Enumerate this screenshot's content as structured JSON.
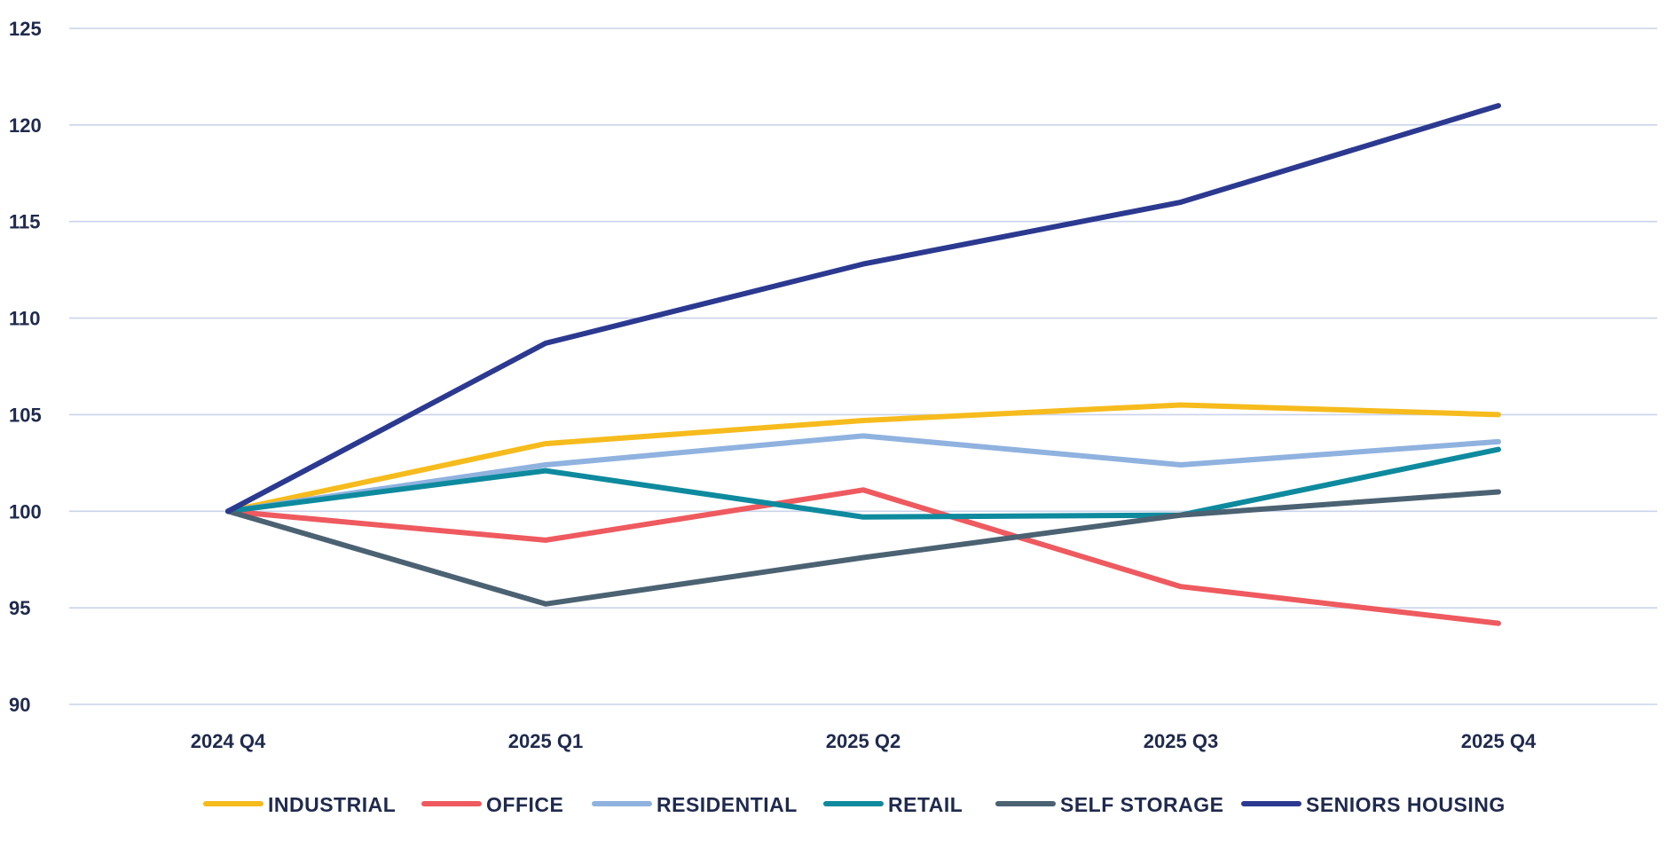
{
  "chart_data": {
    "type": "line",
    "title": "",
    "xlabel": "",
    "ylabel": "",
    "categories": [
      "2024 Q4",
      "2025 Q1",
      "2025 Q2",
      "2025 Q3",
      "2025 Q4"
    ],
    "ylim": [
      90,
      125
    ],
    "yticks": [
      90,
      95,
      100,
      105,
      110,
      115,
      120,
      125
    ],
    "grid": true,
    "legend_position": "bottom",
    "series": [
      {
        "name": "INDUSTRIAL",
        "color": "#f6bb1c",
        "values": [
          100,
          103.5,
          104.7,
          105.5,
          105.0
        ]
      },
      {
        "name": "OFFICE",
        "color": "#ee5a5f",
        "values": [
          100,
          98.5,
          101.1,
          96.1,
          94.2
        ]
      },
      {
        "name": "RESIDENTIAL",
        "color": "#8fb2df",
        "values": [
          100,
          102.4,
          103.9,
          102.4,
          103.6
        ]
      },
      {
        "name": "RETAIL",
        "color": "#0e8a9e",
        "values": [
          100,
          102.1,
          99.7,
          99.8,
          103.2
        ]
      },
      {
        "name": "SELF STORAGE",
        "color": "#4b6272",
        "values": [
          100,
          95.2,
          97.6,
          99.8,
          101.0
        ]
      },
      {
        "name": "SENIORS HOUSING",
        "color": "#2b3990",
        "values": [
          100,
          108.7,
          112.8,
          116.0,
          121.0
        ]
      }
    ]
  }
}
